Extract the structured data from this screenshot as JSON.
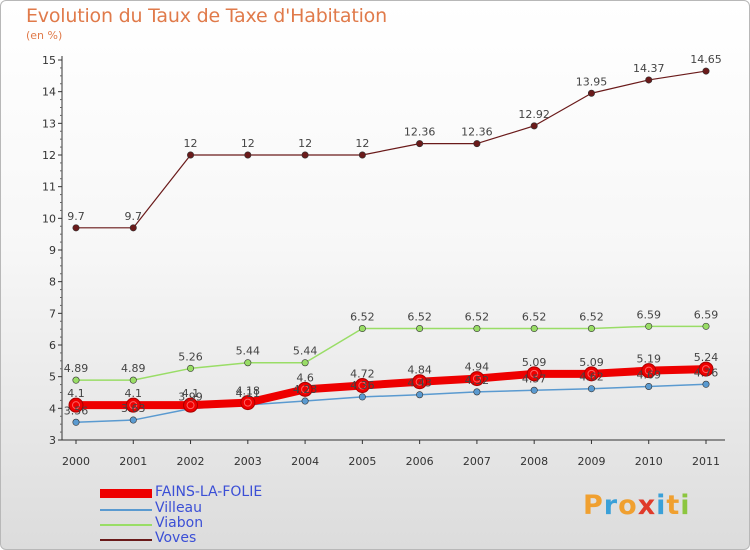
{
  "header": {
    "title": "Evolution du Taux de Taxe d'Habitation",
    "unit": "(en %)"
  },
  "logo": {
    "text": "Proxiti",
    "letters": [
      {
        "ch": "P",
        "color": "#f0a030"
      },
      {
        "ch": "r",
        "color": "#3aa0d8"
      },
      {
        "ch": "o",
        "color": "#f0a030"
      },
      {
        "ch": "x",
        "color": "#e03a2a"
      },
      {
        "ch": "i",
        "color": "#3aa0d8"
      },
      {
        "ch": "t",
        "color": "#f0a030"
      },
      {
        "ch": "i",
        "color": "#8cc63f"
      }
    ]
  },
  "chart_data": {
    "type": "line",
    "categories": [
      "2000",
      "2001",
      "2002",
      "2003",
      "2004",
      "2005",
      "2006",
      "2007",
      "2008",
      "2009",
      "2010",
      "2011"
    ],
    "ylim": [
      3,
      15
    ],
    "yticks": [
      "3",
      "4",
      "5",
      "6",
      "7",
      "8",
      "9",
      "10",
      "11",
      "12",
      "13",
      "14",
      "15"
    ],
    "grid": false,
    "legend_position": "bottom-left",
    "series": [
      {
        "name": "Voves",
        "color": "#6a1a1a",
        "width": 1.2,
        "values": [
          9.7,
          9.7,
          12,
          12,
          12,
          12,
          12.36,
          12.36,
          12.92,
          13.95,
          14.37,
          14.65
        ],
        "labels": [
          "9.7",
          "9.7",
          "12",
          "12",
          "12",
          "12",
          "12.36",
          "12.36",
          "12.92",
          "13.95",
          "14.37",
          "14.65"
        ]
      },
      {
        "name": "Viabon",
        "color": "#99dd66",
        "width": 1.5,
        "values": [
          4.89,
          4.89,
          5.26,
          5.44,
          5.44,
          6.52,
          6.52,
          6.52,
          6.52,
          6.52,
          6.59,
          6.59
        ],
        "labels": [
          "4.89",
          "4.89",
          "5.26",
          "5.44",
          "5.44",
          "6.52",
          "6.52",
          "6.52",
          "6.52",
          "6.52",
          "6.59",
          "6.59"
        ]
      },
      {
        "name": "Villeau",
        "color": "#5a9ad0",
        "width": 1.5,
        "values": [
          3.56,
          3.63,
          3.99,
          4.11,
          4.23,
          4.36,
          4.43,
          4.52,
          4.57,
          4.62,
          4.69,
          4.76
        ],
        "labels": [
          "3.56",
          "3.63",
          "3.99",
          "4.11",
          "4.23",
          "4.36",
          "4.43",
          "4.52",
          "4.57",
          "4.62",
          "4.69",
          "4.76"
        ]
      },
      {
        "name": "FAINS-LA-FOLIE",
        "color": "#ee0000",
        "width": 8,
        "values": [
          4.1,
          4.1,
          4.1,
          4.18,
          4.6,
          4.72,
          4.84,
          4.94,
          5.09,
          5.09,
          5.19,
          5.24
        ],
        "labels": [
          "4.1",
          "4.1",
          "4.1",
          "4.18",
          "4.6",
          "4.72",
          "4.84",
          "4.94",
          "5.09",
          "5.09",
          "5.19",
          "5.24"
        ]
      }
    ]
  }
}
